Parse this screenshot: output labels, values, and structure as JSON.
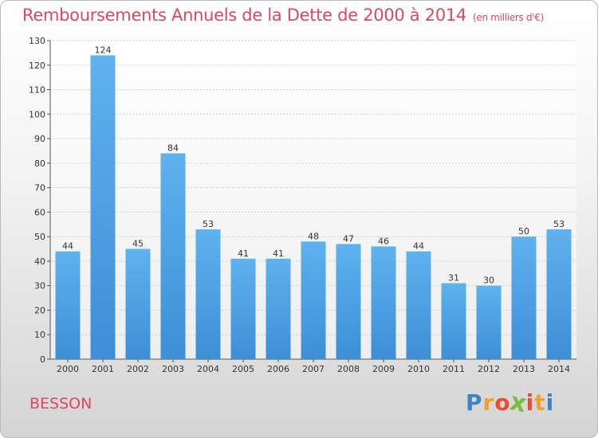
{
  "chart_data": {
    "type": "bar",
    "title": "Remboursements Annuels de la Dette de 2000 à 2014",
    "subtitle": "(en milliers d'€)",
    "categories": [
      "2000",
      "2001",
      "2002",
      "2003",
      "2004",
      "2005",
      "2006",
      "2007",
      "2008",
      "2009",
      "2010",
      "2011",
      "2012",
      "2013",
      "2014"
    ],
    "values": [
      44,
      124,
      45,
      84,
      53,
      41,
      41,
      48,
      47,
      46,
      44,
      31,
      30,
      50,
      53
    ],
    "ylim": [
      0,
      130
    ],
    "yticks": [
      0,
      10,
      20,
      30,
      40,
      50,
      60,
      70,
      80,
      90,
      100,
      110,
      120,
      130
    ],
    "grid": true,
    "bar_color": "#3d8fd6",
    "bar_highlight": "#5eb2ee"
  },
  "commune": "BESSON",
  "logo": {
    "letters": [
      "P",
      "r",
      "o",
      "x",
      "i",
      "t",
      "i"
    ],
    "colors": [
      "#3c83c8",
      "#f0a12b",
      "#e94c2f",
      "#7cba3c",
      "#e94c2f",
      "#f0a12b",
      "#3c83c8"
    ]
  }
}
